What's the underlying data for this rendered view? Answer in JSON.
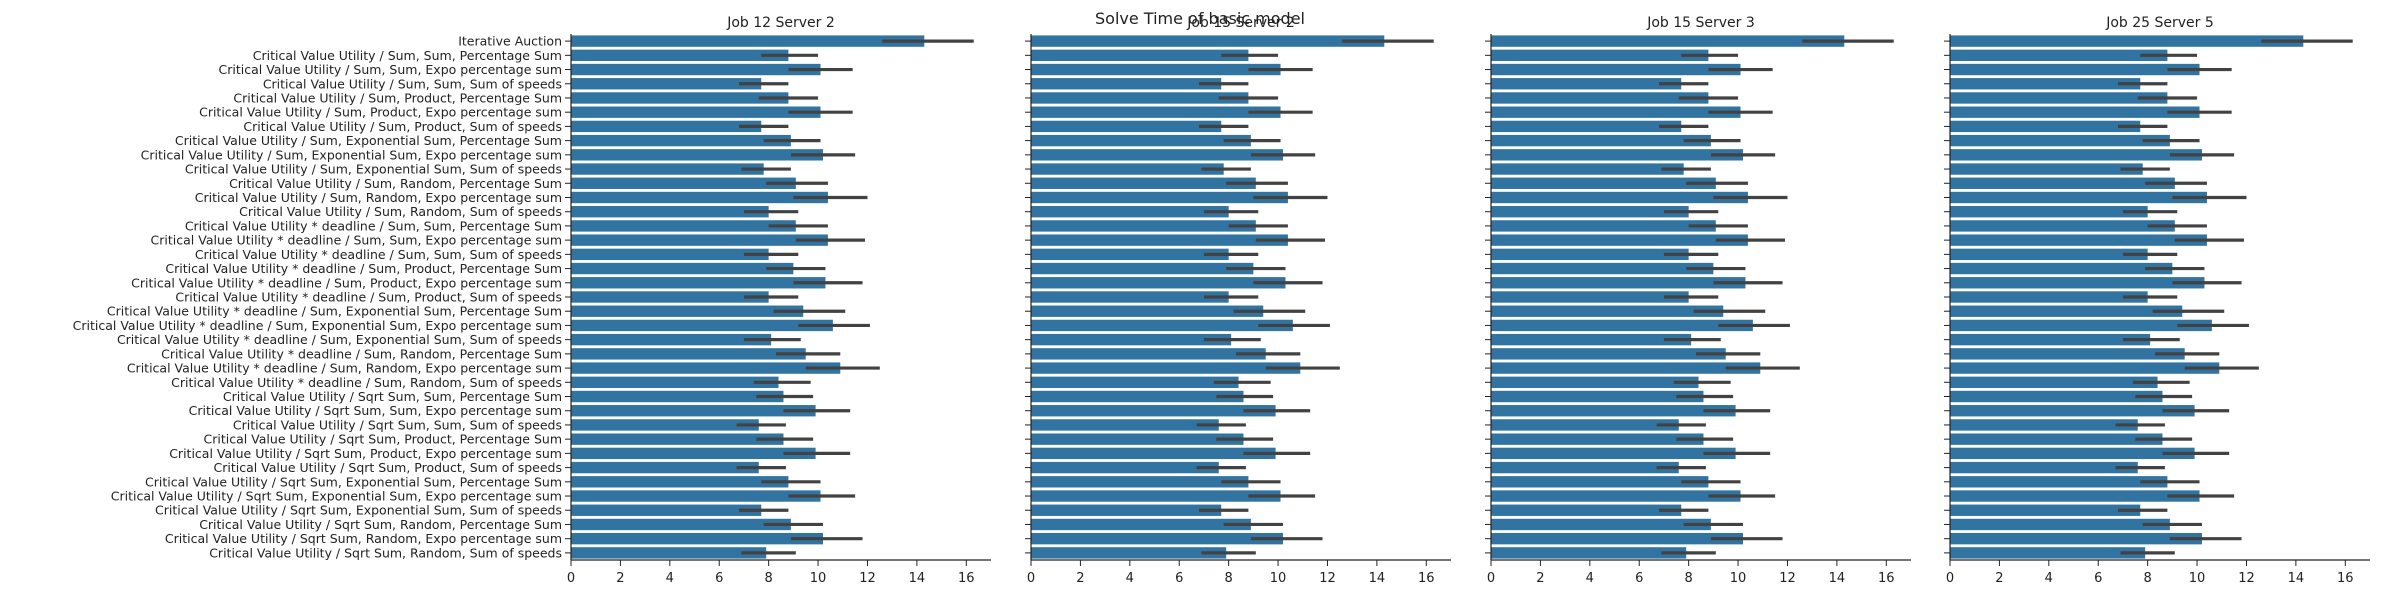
{
  "figure": {
    "title": "Solve Time of basic model"
  },
  "chart_data": [
    {
      "type": "bar",
      "orientation": "horizontal",
      "title": "Job 12 Server 2",
      "categories": [
        "Iterative Auction",
        "Critical Value Utility / Sum, Sum, Percentage Sum",
        "Critical Value Utility / Sum, Sum, Expo percentage sum",
        "Critical Value Utility / Sum, Sum, Sum of speeds",
        "Critical Value Utility / Sum, Product, Percentage Sum",
        "Critical Value Utility / Sum, Product, Expo percentage sum",
        "Critical Value Utility / Sum, Product, Sum of speeds",
        "Critical Value Utility / Sum, Exponential Sum, Percentage Sum",
        "Critical Value Utility / Sum, Exponential Sum, Expo percentage sum",
        "Critical Value Utility / Sum, Exponential Sum, Sum of speeds",
        "Critical Value Utility / Sum, Random, Percentage Sum",
        "Critical Value Utility / Sum, Random, Expo percentage sum",
        "Critical Value Utility / Sum, Random, Sum of speeds",
        "Critical Value Utility * deadline / Sum, Sum, Percentage Sum",
        "Critical Value Utility * deadline / Sum, Sum, Expo percentage sum",
        "Critical Value Utility * deadline / Sum, Sum, Sum of speeds",
        "Critical Value Utility * deadline / Sum, Product, Percentage Sum",
        "Critical Value Utility * deadline / Sum, Product, Expo percentage sum",
        "Critical Value Utility * deadline / Sum, Product, Sum of speeds",
        "Critical Value Utility * deadline / Sum, Exponential Sum, Percentage Sum",
        "Critical Value Utility * deadline / Sum, Exponential Sum, Expo percentage sum",
        "Critical Value Utility * deadline / Sum, Exponential Sum, Sum of speeds",
        "Critical Value Utility * deadline / Sum, Random, Percentage Sum",
        "Critical Value Utility * deadline / Sum, Random, Expo percentage sum",
        "Critical Value Utility * deadline / Sum, Random, Sum of speeds",
        "Critical Value Utility / Sqrt Sum, Sum, Percentage Sum",
        "Critical Value Utility / Sqrt Sum, Sum, Expo percentage sum",
        "Critical Value Utility / Sqrt Sum, Sum, Sum of speeds",
        "Critical Value Utility / Sqrt Sum, Product, Percentage Sum",
        "Critical Value Utility / Sqrt Sum, Product, Expo percentage sum",
        "Critical Value Utility / Sqrt Sum, Product, Sum of speeds",
        "Critical Value Utility / Sqrt Sum, Exponential Sum, Percentage Sum",
        "Critical Value Utility / Sqrt Sum, Exponential Sum, Expo percentage sum",
        "Critical Value Utility / Sqrt Sum, Exponential Sum, Sum of speeds",
        "Critical Value Utility / Sqrt Sum, Random, Percentage Sum",
        "Critical Value Utility / Sqrt Sum, Random, Expo percentage sum",
        "Critical Value Utility / Sqrt Sum, Random, Sum of speeds"
      ],
      "values": [
        14.3,
        8.8,
        10.1,
        7.7,
        8.8,
        10.1,
        7.7,
        8.9,
        10.2,
        7.8,
        9.1,
        10.4,
        8.0,
        9.1,
        10.4,
        8.0,
        9.0,
        10.3,
        8.0,
        9.4,
        10.6,
        8.1,
        9.5,
        10.9,
        8.4,
        8.6,
        9.9,
        7.6,
        8.6,
        9.9,
        7.6,
        8.8,
        10.1,
        7.7,
        8.9,
        10.2,
        7.9
      ],
      "errors": [
        [
          12.6,
          16.3
        ],
        [
          7.7,
          10.0
        ],
        [
          8.8,
          11.4
        ],
        [
          6.8,
          8.8
        ],
        [
          7.6,
          10.0
        ],
        [
          8.8,
          11.4
        ],
        [
          6.8,
          8.8
        ],
        [
          7.8,
          10.1
        ],
        [
          8.9,
          11.5
        ],
        [
          6.9,
          8.9
        ],
        [
          7.9,
          10.4
        ],
        [
          9.0,
          12.0
        ],
        [
          7.0,
          9.2
        ],
        [
          8.0,
          10.4
        ],
        [
          9.1,
          11.9
        ],
        [
          7.0,
          9.2
        ],
        [
          7.9,
          10.3
        ],
        [
          9.0,
          11.8
        ],
        [
          7.0,
          9.2
        ],
        [
          8.2,
          11.1
        ],
        [
          9.2,
          12.1
        ],
        [
          7.0,
          9.3
        ],
        [
          8.3,
          10.9
        ],
        [
          9.5,
          12.5
        ],
        [
          7.4,
          9.7
        ],
        [
          7.5,
          9.8
        ],
        [
          8.6,
          11.3
        ],
        [
          6.7,
          8.7
        ],
        [
          7.5,
          9.8
        ],
        [
          8.6,
          11.3
        ],
        [
          6.7,
          8.7
        ],
        [
          7.7,
          10.1
        ],
        [
          8.8,
          11.5
        ],
        [
          6.8,
          8.8
        ],
        [
          7.8,
          10.2
        ],
        [
          8.9,
          11.8
        ],
        [
          6.9,
          9.1
        ]
      ],
      "xlim": [
        0,
        17
      ],
      "xticks": [
        0,
        2,
        4,
        6,
        8,
        10,
        12,
        14,
        16
      ],
      "xlabel": "",
      "ylabel": "",
      "grid": false
    },
    {
      "type": "bar",
      "orientation": "horizontal",
      "title": "Job 15 Server 2",
      "values": [
        14.3,
        8.8,
        10.1,
        7.7,
        8.8,
        10.1,
        7.7,
        8.9,
        10.2,
        7.8,
        9.1,
        10.4,
        8.0,
        9.1,
        10.4,
        8.0,
        9.0,
        10.3,
        8.0,
        9.4,
        10.6,
        8.1,
        9.5,
        10.9,
        8.4,
        8.6,
        9.9,
        7.6,
        8.6,
        9.9,
        7.6,
        8.8,
        10.1,
        7.7,
        8.9,
        10.2,
        7.9
      ],
      "errors": [
        [
          12.6,
          16.3
        ],
        [
          7.7,
          10.0
        ],
        [
          8.8,
          11.4
        ],
        [
          6.8,
          8.8
        ],
        [
          7.6,
          10.0
        ],
        [
          8.8,
          11.4
        ],
        [
          6.8,
          8.8
        ],
        [
          7.8,
          10.1
        ],
        [
          8.9,
          11.5
        ],
        [
          6.9,
          8.9
        ],
        [
          7.9,
          10.4
        ],
        [
          9.0,
          12.0
        ],
        [
          7.0,
          9.2
        ],
        [
          8.0,
          10.4
        ],
        [
          9.1,
          11.9
        ],
        [
          7.0,
          9.2
        ],
        [
          7.9,
          10.3
        ],
        [
          9.0,
          11.8
        ],
        [
          7.0,
          9.2
        ],
        [
          8.2,
          11.1
        ],
        [
          9.2,
          12.1
        ],
        [
          7.0,
          9.3
        ],
        [
          8.3,
          10.9
        ],
        [
          9.5,
          12.5
        ],
        [
          7.4,
          9.7
        ],
        [
          7.5,
          9.8
        ],
        [
          8.6,
          11.3
        ],
        [
          6.7,
          8.7
        ],
        [
          7.5,
          9.8
        ],
        [
          8.6,
          11.3
        ],
        [
          6.7,
          8.7
        ],
        [
          7.7,
          10.1
        ],
        [
          8.8,
          11.5
        ],
        [
          6.8,
          8.8
        ],
        [
          7.8,
          10.2
        ],
        [
          8.9,
          11.8
        ],
        [
          6.9,
          9.1
        ]
      ],
      "xlim": [
        0,
        17
      ],
      "xticks": [
        0,
        2,
        4,
        6,
        8,
        10,
        12,
        14,
        16
      ],
      "grid": false
    },
    {
      "type": "bar",
      "orientation": "horizontal",
      "title": "Job 15 Server 3",
      "values": [
        14.3,
        8.8,
        10.1,
        7.7,
        8.8,
        10.1,
        7.7,
        8.9,
        10.2,
        7.8,
        9.1,
        10.4,
        8.0,
        9.1,
        10.4,
        8.0,
        9.0,
        10.3,
        8.0,
        9.4,
        10.6,
        8.1,
        9.5,
        10.9,
        8.4,
        8.6,
        9.9,
        7.6,
        8.6,
        9.9,
        7.6,
        8.8,
        10.1,
        7.7,
        8.9,
        10.2,
        7.9
      ],
      "errors": [
        [
          12.6,
          16.3
        ],
        [
          7.7,
          10.0
        ],
        [
          8.8,
          11.4
        ],
        [
          6.8,
          8.8
        ],
        [
          7.6,
          10.0
        ],
        [
          8.8,
          11.4
        ],
        [
          6.8,
          8.8
        ],
        [
          7.8,
          10.1
        ],
        [
          8.9,
          11.5
        ],
        [
          6.9,
          8.9
        ],
        [
          7.9,
          10.4
        ],
        [
          9.0,
          12.0
        ],
        [
          7.0,
          9.2
        ],
        [
          8.0,
          10.4
        ],
        [
          9.1,
          11.9
        ],
        [
          7.0,
          9.2
        ],
        [
          7.9,
          10.3
        ],
        [
          9.0,
          11.8
        ],
        [
          7.0,
          9.2
        ],
        [
          8.2,
          11.1
        ],
        [
          9.2,
          12.1
        ],
        [
          7.0,
          9.3
        ],
        [
          8.3,
          10.9
        ],
        [
          9.5,
          12.5
        ],
        [
          7.4,
          9.7
        ],
        [
          7.5,
          9.8
        ],
        [
          8.6,
          11.3
        ],
        [
          6.7,
          8.7
        ],
        [
          7.5,
          9.8
        ],
        [
          8.6,
          11.3
        ],
        [
          6.7,
          8.7
        ],
        [
          7.7,
          10.1
        ],
        [
          8.8,
          11.5
        ],
        [
          6.8,
          8.8
        ],
        [
          7.8,
          10.2
        ],
        [
          8.9,
          11.8
        ],
        [
          6.9,
          9.1
        ]
      ],
      "xlim": [
        0,
        17
      ],
      "xticks": [
        0,
        2,
        4,
        6,
        8,
        10,
        12,
        14,
        16
      ],
      "grid": false
    },
    {
      "type": "bar",
      "orientation": "horizontal",
      "title": "Job 25 Server 5",
      "values": [
        14.3,
        8.8,
        10.1,
        7.7,
        8.8,
        10.1,
        7.7,
        8.9,
        10.2,
        7.8,
        9.1,
        10.4,
        8.0,
        9.1,
        10.4,
        8.0,
        9.0,
        10.3,
        8.0,
        9.4,
        10.6,
        8.1,
        9.5,
        10.9,
        8.4,
        8.6,
        9.9,
        7.6,
        8.6,
        9.9,
        7.6,
        8.8,
        10.1,
        7.7,
        8.9,
        10.2,
        7.9
      ],
      "errors": [
        [
          12.6,
          16.3
        ],
        [
          7.7,
          10.0
        ],
        [
          8.8,
          11.4
        ],
        [
          6.8,
          8.8
        ],
        [
          7.6,
          10.0
        ],
        [
          8.8,
          11.4
        ],
        [
          6.8,
          8.8
        ],
        [
          7.8,
          10.1
        ],
        [
          8.9,
          11.5
        ],
        [
          6.9,
          8.9
        ],
        [
          7.9,
          10.4
        ],
        [
          9.0,
          12.0
        ],
        [
          7.0,
          9.2
        ],
        [
          8.0,
          10.4
        ],
        [
          9.1,
          11.9
        ],
        [
          7.0,
          9.2
        ],
        [
          7.9,
          10.3
        ],
        [
          9.0,
          11.8
        ],
        [
          7.0,
          9.2
        ],
        [
          8.2,
          11.1
        ],
        [
          9.2,
          12.1
        ],
        [
          7.0,
          9.3
        ],
        [
          8.3,
          10.9
        ],
        [
          9.5,
          12.5
        ],
        [
          7.4,
          9.7
        ],
        [
          7.5,
          9.8
        ],
        [
          8.6,
          11.3
        ],
        [
          6.7,
          8.7
        ],
        [
          7.5,
          9.8
        ],
        [
          8.6,
          11.3
        ],
        [
          6.7,
          8.7
        ],
        [
          7.7,
          10.1
        ],
        [
          8.8,
          11.5
        ],
        [
          6.8,
          8.8
        ],
        [
          7.8,
          10.2
        ],
        [
          8.9,
          11.8
        ],
        [
          6.9,
          9.1
        ]
      ],
      "xlim": [
        0,
        17
      ],
      "xticks": [
        0,
        2,
        4,
        6,
        8,
        10,
        12,
        14,
        16
      ],
      "grid": false
    }
  ],
  "colors": {
    "bar": "#3274a1",
    "errorbar": "#424242",
    "axis": "#222222"
  }
}
